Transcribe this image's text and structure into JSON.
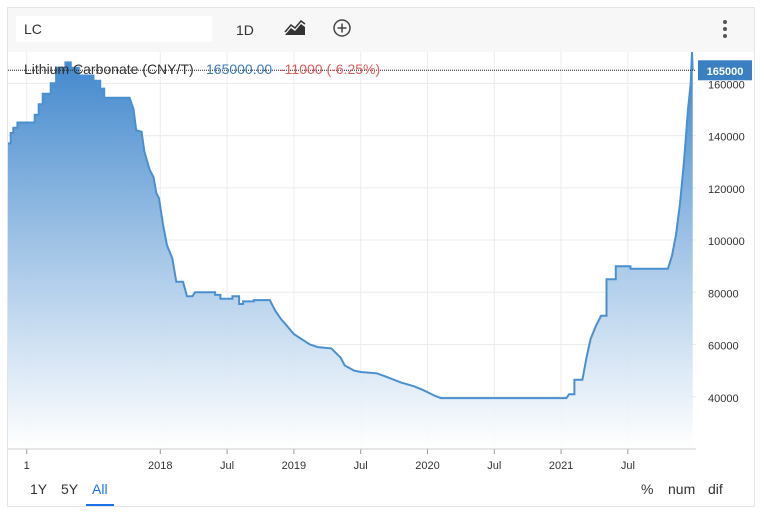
{
  "toolbar": {
    "symbol_value": "LC",
    "interval_label": "1D",
    "chart_type_icon": "line-chart-icon",
    "add_icon": "plus-circle-icon",
    "more_icon": "vertical-dots-icon"
  },
  "header": {
    "name": "Lithium Carbonate (CNY/T)",
    "price": "165000.00",
    "change": "-11000 (-6.25%)"
  },
  "colors": {
    "line": "#4a90d0",
    "fill_top": "#3d85cc",
    "fill_bottom": "#ffffff",
    "price_blue": "#3a7ab8",
    "change_red": "#e05a5a",
    "last_badge": "#3a7fc1",
    "grid": "#ececec"
  },
  "chart_data": {
    "type": "area",
    "title": "Lithium Carbonate (CNY/T)",
    "xlabel": "",
    "ylabel": "",
    "ylim": [
      20000,
      172000
    ],
    "yticks": [
      40000,
      60000,
      80000,
      100000,
      120000,
      140000,
      160000
    ],
    "xticks": [
      {
        "t": 2017.0,
        "label": "1"
      },
      {
        "t": 2018.0,
        "label": "2018"
      },
      {
        "t": 2018.5,
        "label": "Jul"
      },
      {
        "t": 2019.0,
        "label": "2019"
      },
      {
        "t": 2019.5,
        "label": "Jul"
      },
      {
        "t": 2020.0,
        "label": "2020"
      },
      {
        "t": 2020.5,
        "label": "Jul"
      },
      {
        "t": 2021.0,
        "label": "2021"
      },
      {
        "t": 2021.5,
        "label": "Jul"
      }
    ],
    "last_value_label": "165000",
    "grid": true,
    "series": [
      {
        "points": [
          [
            2016.86,
            137000
          ],
          [
            2016.88,
            137000
          ],
          [
            2016.88,
            141000
          ],
          [
            2016.9,
            141000
          ],
          [
            2016.9,
            143000
          ],
          [
            2016.93,
            143000
          ],
          [
            2016.93,
            145000
          ],
          [
            2017.06,
            145000
          ],
          [
            2017.06,
            148000
          ],
          [
            2017.09,
            148000
          ],
          [
            2017.09,
            152000
          ],
          [
            2017.12,
            152000
          ],
          [
            2017.12,
            156000
          ],
          [
            2017.18,
            156000
          ],
          [
            2017.18,
            160000
          ],
          [
            2017.22,
            160000
          ],
          [
            2017.22,
            166000
          ],
          [
            2017.29,
            166000
          ],
          [
            2017.29,
            168000
          ],
          [
            2017.33,
            168000
          ],
          [
            2017.33,
            166000
          ],
          [
            2017.39,
            166000
          ],
          [
            2017.39,
            163000
          ],
          [
            2017.5,
            163000
          ],
          [
            2017.5,
            161000
          ],
          [
            2017.55,
            161000
          ],
          [
            2017.55,
            158000
          ],
          [
            2017.58,
            158000
          ],
          [
            2017.58,
            154500
          ],
          [
            2017.77,
            154500
          ],
          [
            2017.8,
            150000
          ],
          [
            2017.82,
            142000
          ],
          [
            2017.86,
            141500
          ],
          [
            2017.88,
            134000
          ],
          [
            2017.92,
            127000
          ],
          [
            2017.95,
            124000
          ],
          [
            2017.97,
            118000
          ],
          [
            2017.99,
            116000
          ],
          [
            2018.02,
            106000
          ],
          [
            2018.05,
            98000
          ],
          [
            2018.09,
            93000
          ],
          [
            2018.12,
            84000
          ],
          [
            2018.17,
            84000
          ],
          [
            2018.2,
            78500
          ],
          [
            2018.24,
            78500
          ],
          [
            2018.26,
            80000
          ],
          [
            2018.41,
            80000
          ],
          [
            2018.41,
            79000
          ],
          [
            2018.45,
            79000
          ],
          [
            2018.45,
            77500
          ],
          [
            2018.54,
            77500
          ],
          [
            2018.54,
            78500
          ],
          [
            2018.59,
            78500
          ],
          [
            2018.59,
            75500
          ],
          [
            2018.62,
            75500
          ],
          [
            2018.62,
            76500
          ],
          [
            2018.7,
            76500
          ],
          [
            2018.7,
            77000
          ],
          [
            2018.82,
            77000
          ],
          [
            2018.86,
            73000
          ],
          [
            2018.9,
            70000
          ],
          [
            2018.95,
            67000
          ],
          [
            2019.0,
            64000
          ],
          [
            2019.06,
            62000
          ],
          [
            2019.12,
            60000
          ],
          [
            2019.18,
            59000
          ],
          [
            2019.28,
            58500
          ],
          [
            2019.35,
            55000
          ],
          [
            2019.38,
            52000
          ],
          [
            2019.45,
            50000
          ],
          [
            2019.5,
            49500
          ],
          [
            2019.62,
            49000
          ],
          [
            2019.7,
            47500
          ],
          [
            2019.8,
            45500
          ],
          [
            2019.9,
            44000
          ],
          [
            2019.97,
            42500
          ],
          [
            2020.05,
            40500
          ],
          [
            2020.1,
            39500
          ],
          [
            2021.04,
            39500
          ],
          [
            2021.06,
            41000
          ],
          [
            2021.1,
            41000
          ],
          [
            2021.1,
            46500
          ],
          [
            2021.16,
            46500
          ],
          [
            2021.19,
            55000
          ],
          [
            2021.22,
            62000
          ],
          [
            2021.26,
            67000
          ],
          [
            2021.3,
            71000
          ],
          [
            2021.34,
            71000
          ],
          [
            2021.34,
            85000
          ],
          [
            2021.41,
            85000
          ],
          [
            2021.41,
            90000
          ],
          [
            2021.52,
            90000
          ],
          [
            2021.52,
            89000
          ],
          [
            2021.8,
            89000
          ],
          [
            2021.83,
            94000
          ],
          [
            2021.86,
            102000
          ],
          [
            2021.89,
            114000
          ],
          [
            2021.92,
            130000
          ],
          [
            2021.95,
            150000
          ],
          [
            2021.97,
            160000
          ],
          [
            2021.98,
            172000
          ],
          [
            2021.985,
            165000
          ]
        ]
      }
    ]
  },
  "footer": {
    "range_1y": "1Y",
    "range_5y": "5Y",
    "range_all": "All",
    "mode_pct": "%",
    "mode_num": "num",
    "mode_dif": "dif"
  }
}
